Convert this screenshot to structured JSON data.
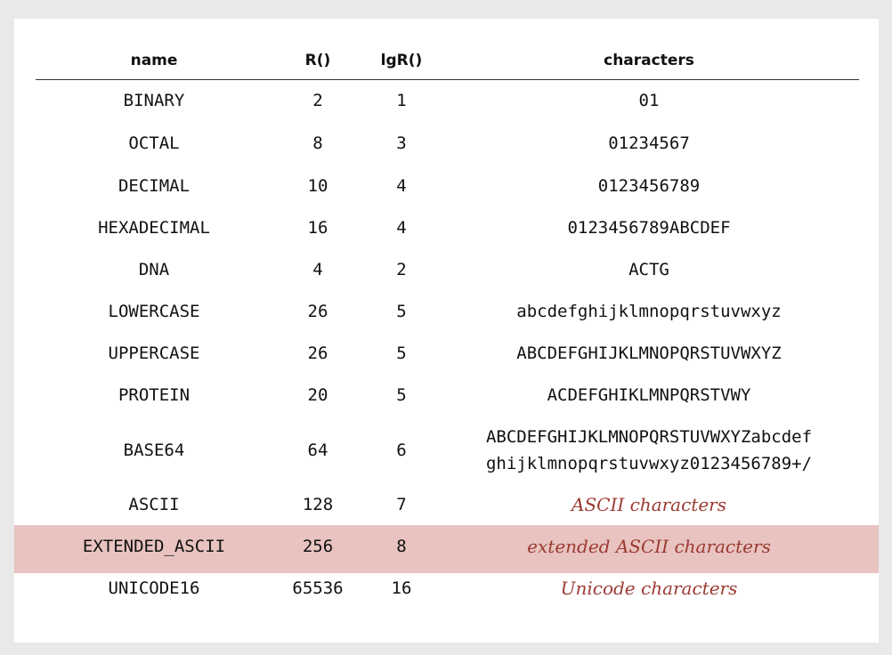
{
  "headers": {
    "name": "name",
    "r": "R()",
    "lgr": "lgR()",
    "characters": "characters"
  },
  "rows": [
    {
      "name": "BINARY",
      "r": "2",
      "lgr": "1",
      "characters": "01"
    },
    {
      "name": "OCTAL",
      "r": "8",
      "lgr": "3",
      "characters": "01234567"
    },
    {
      "name": "DECIMAL",
      "r": "10",
      "lgr": "4",
      "characters": "0123456789"
    },
    {
      "name": "HEXADECIMAL",
      "r": "16",
      "lgr": "4",
      "characters": "0123456789ABCDEF"
    },
    {
      "name": "DNA",
      "r": "4",
      "lgr": "2",
      "characters": "ACTG"
    },
    {
      "name": "LOWERCASE",
      "r": "26",
      "lgr": "5",
      "characters": "abcdefghijklmnopqrstuvwxyz"
    },
    {
      "name": "UPPERCASE",
      "r": "26",
      "lgr": "5",
      "characters": "ABCDEFGHIJKLMNOPQRSTUVWXYZ"
    },
    {
      "name": "PROTEIN",
      "r": "20",
      "lgr": "5",
      "characters": "ACDEFGHIKLMNPQRSTVWY"
    },
    {
      "name": "BASE64",
      "r": "64",
      "lgr": "6",
      "characters_line1": "ABCDEFGHIJKLMNOPQRSTUVWXYZabcdef",
      "characters_line2": "ghijklmnopqrstuvwxyz0123456789+/"
    },
    {
      "name": "ASCII",
      "r": "128",
      "lgr": "7",
      "characters": "ASCII characters"
    },
    {
      "name": "EXTENDED_ASCII",
      "r": "256",
      "lgr": "8",
      "characters": "extended ASCII characters"
    },
    {
      "name": "UNICODE16",
      "r": "65536",
      "lgr": "16",
      "characters": "Unicode characters"
    }
  ],
  "colors": {
    "highlight_row": "#e8c3c0",
    "italic_text": "#9c3a31"
  }
}
